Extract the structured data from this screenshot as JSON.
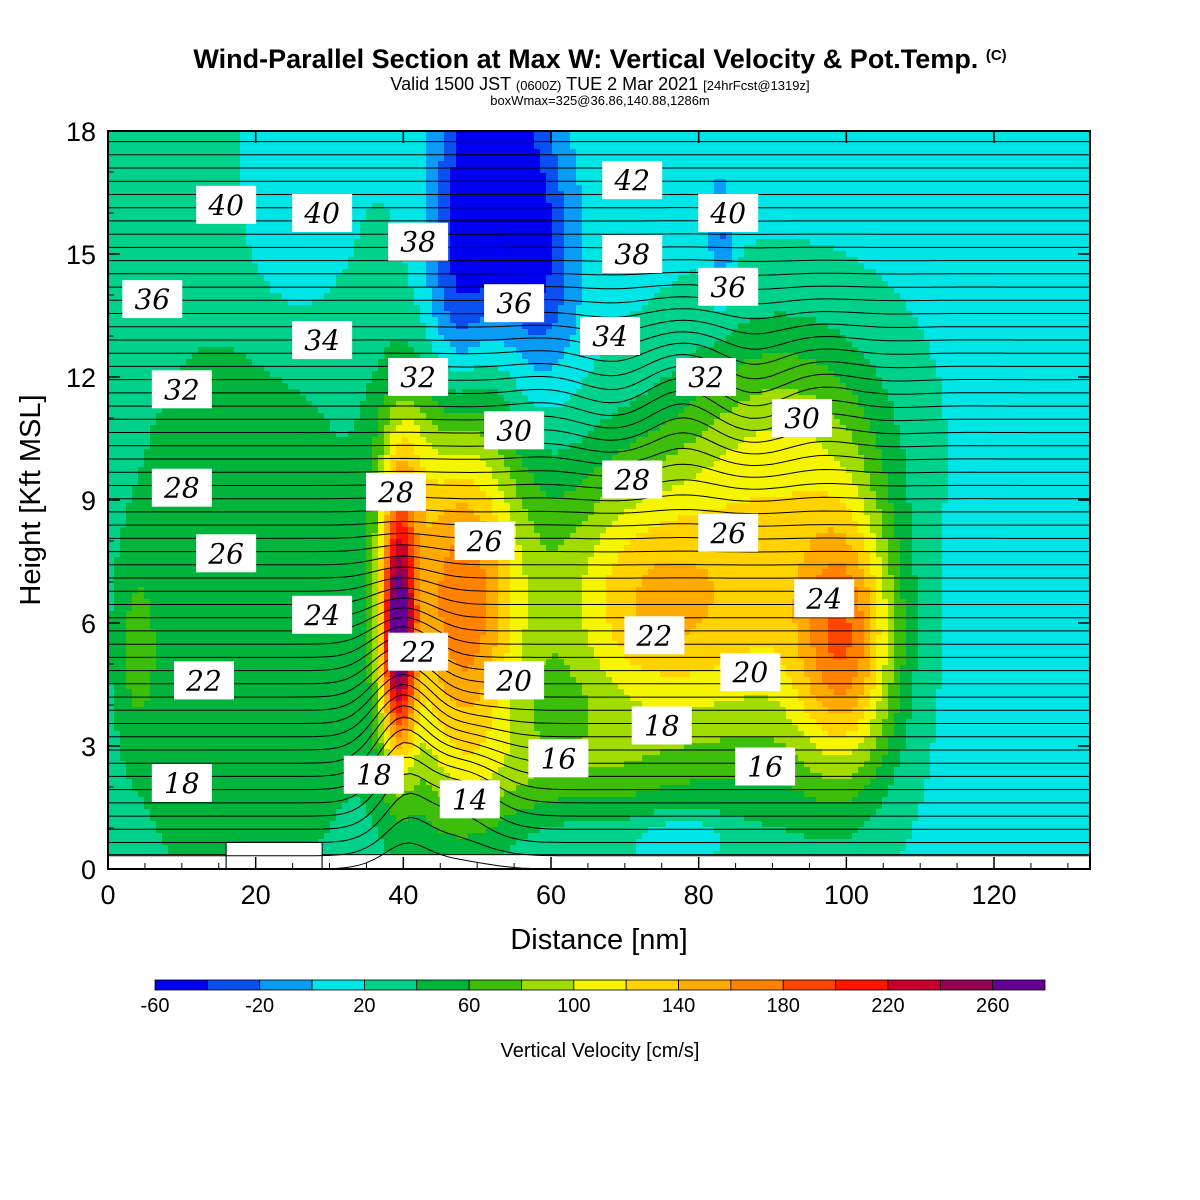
{
  "header": {
    "title": "Wind-Parallel Section at Max W: Vertical Velocity & Pot.Temp.",
    "title_mark": "(C)",
    "valid_prefix": "Valid 1500 JST",
    "valid_utc": "(0600Z)",
    "valid_date": "TUE 2 Mar 2021",
    "forecast_info": "[24hrFcst@1319z]",
    "box_info": "boxWmax=325@36.86,140.88,1286m"
  },
  "chart_data": {
    "type": "heatmap",
    "xlabel": "Distance [nm]",
    "ylabel": "Height [Kft MSL]",
    "xlim": [
      0,
      133
    ],
    "ylim": [
      0,
      18
    ],
    "x_ticks": [
      "0",
      "20",
      "40",
      "60",
      "80",
      "100",
      "120"
    ],
    "y_ticks": [
      "0",
      "3",
      "6",
      "9",
      "12",
      "15",
      "18"
    ],
    "colorbar": {
      "label": "Vertical Velocity [cm/s]",
      "tick_labels": [
        "-60",
        "-20",
        "20",
        "60",
        "100",
        "140",
        "180",
        "220",
        "260"
      ],
      "levels": [
        -60,
        -40,
        -20,
        0,
        20,
        40,
        60,
        80,
        100,
        120,
        140,
        160,
        180,
        200,
        220,
        240,
        260,
        280
      ],
      "colors": [
        "#0000f0",
        "#0a50f0",
        "#0a9bf5",
        "#00e6e6",
        "#00d28c",
        "#00b43c",
        "#3cbe0a",
        "#a0dc00",
        "#f5f500",
        "#ffd200",
        "#ffaa00",
        "#ff8200",
        "#ff4600",
        "#ff1400",
        "#c8002d",
        "#960050",
        "#640096"
      ]
    },
    "vertical_velocity_features": [
      {
        "x": 39,
        "y": 5.5,
        "value": 280
      },
      {
        "x": 39,
        "y": 7.5,
        "value": 220
      },
      {
        "x": 41,
        "y": 9.5,
        "value": 150
      },
      {
        "x": 40,
        "y": 11.5,
        "value": 100
      },
      {
        "x": 100,
        "y": 5.5,
        "value": 160
      },
      {
        "x": 71,
        "y": 6.5,
        "value": 140
      },
      {
        "x": 56,
        "y": 5,
        "value": 120
      },
      {
        "x": 86,
        "y": 6,
        "value": 135
      },
      {
        "x": 4,
        "y": 5.3,
        "value": 100
      },
      {
        "x": 52,
        "y": 17,
        "value": -60
      },
      {
        "x": 50,
        "y": 14.5,
        "value": -40
      },
      {
        "x": 56,
        "y": 13,
        "value": -20
      },
      {
        "x": 83,
        "y": 15.2,
        "value": -30
      },
      {
        "x": 25,
        "y": 16,
        "value": -10
      },
      {
        "x": 78,
        "y": 0.8,
        "value": -10
      },
      {
        "x": 128,
        "y": 9,
        "value": 10
      },
      {
        "x": 110,
        "y": 13,
        "value": 15
      }
    ],
    "theta_labels": [
      {
        "text": "40",
        "x": 16,
        "y": 16.2
      },
      {
        "text": "40",
        "x": 29,
        "y": 16.0
      },
      {
        "text": "38",
        "x": 42,
        "y": 15.3
      },
      {
        "text": "42",
        "x": 71,
        "y": 16.8
      },
      {
        "text": "40",
        "x": 84,
        "y": 16.0
      },
      {
        "text": "38",
        "x": 71,
        "y": 15.0
      },
      {
        "text": "36",
        "x": 84,
        "y": 14.2
      },
      {
        "text": "36",
        "x": 55,
        "y": 13.8
      },
      {
        "text": "36",
        "x": 6,
        "y": 13.9
      },
      {
        "text": "34",
        "x": 29,
        "y": 12.9
      },
      {
        "text": "34",
        "x": 68,
        "y": 13.0
      },
      {
        "text": "32",
        "x": 42,
        "y": 12.0
      },
      {
        "text": "32",
        "x": 81,
        "y": 12.0
      },
      {
        "text": "32",
        "x": 10,
        "y": 11.7
      },
      {
        "text": "30",
        "x": 55,
        "y": 10.7
      },
      {
        "text": "30",
        "x": 94,
        "y": 11.0
      },
      {
        "text": "28",
        "x": 10,
        "y": 9.3
      },
      {
        "text": "28",
        "x": 39,
        "y": 9.2
      },
      {
        "text": "28",
        "x": 71,
        "y": 9.5
      },
      {
        "text": "26",
        "x": 16,
        "y": 7.7
      },
      {
        "text": "26",
        "x": 51,
        "y": 8.0
      },
      {
        "text": "26",
        "x": 84,
        "y": 8.2
      },
      {
        "text": "24",
        "x": 29,
        "y": 6.2
      },
      {
        "text": "24",
        "x": 97,
        "y": 6.6
      },
      {
        "text": "22",
        "x": 13,
        "y": 4.6
      },
      {
        "text": "22",
        "x": 42,
        "y": 5.3
      },
      {
        "text": "22",
        "x": 74,
        "y": 5.7
      },
      {
        "text": "20",
        "x": 55,
        "y": 4.6
      },
      {
        "text": "20",
        "x": 87,
        "y": 4.8
      },
      {
        "text": "18",
        "x": 10,
        "y": 2.1
      },
      {
        "text": "18",
        "x": 36,
        "y": 2.3
      },
      {
        "text": "18",
        "x": 75,
        "y": 3.5
      },
      {
        "text": "16",
        "x": 61,
        "y": 2.7
      },
      {
        "text": "16",
        "x": 89,
        "y": 2.5
      },
      {
        "text": "14",
        "x": 49,
        "y": 1.7
      }
    ],
    "terrain": [
      {
        "x0": 0,
        "x1": 16,
        "top": 0.35
      },
      {
        "x0": 16,
        "x1": 29,
        "top": 0.65
      },
      {
        "x0": 29,
        "x1": 133,
        "top": 0.35
      }
    ]
  }
}
